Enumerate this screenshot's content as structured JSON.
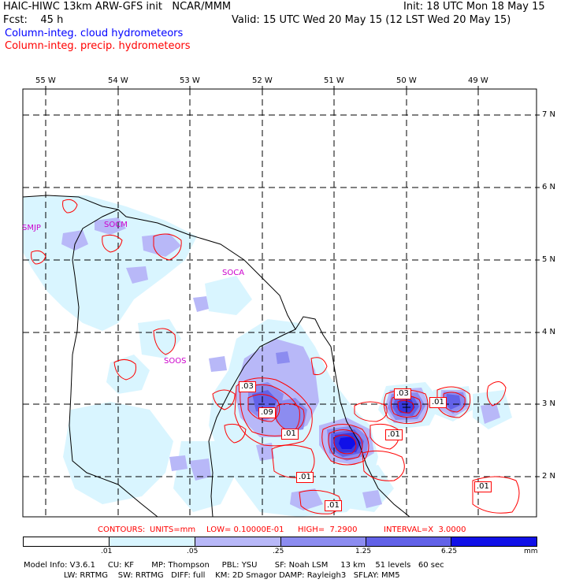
{
  "header": {
    "line1_left": "HAIC-HIWC 13km ARW-GFS init   NCAR/MMM",
    "line1_right": "Init: 18 UTC Mon 18 May 15",
    "line2_left": "Fcst:    45 h",
    "line2_right": "Valid: 15 UTC Wed 20 May 15 (12 LST Wed 20 May 15)",
    "line3": "Column-integ. cloud hydrometeors",
    "line4": "Column-integ. precip. hydrometeors"
  },
  "colors": {
    "cloud": "#0000ff",
    "precip": "#ff0000",
    "station": "#cc00cc",
    "shade1": "#d9f5ff",
    "shade2": "#b8b8f8",
    "shade3": "#8c8cf0",
    "shade4": "#6262e8",
    "shade5": "#3838e0",
    "shade6": "#1010e8"
  },
  "axes": {
    "lon_labels": [
      "55 W",
      "54 W",
      "53 W",
      "52 W",
      "51 W",
      "50 W",
      "49 W"
    ],
    "lat_labels": [
      "7 N",
      "6 N",
      "5 N",
      "4 N",
      "3 N",
      "2 N"
    ]
  },
  "stations": [
    "SMJP",
    "SOCM",
    "SOCA",
    "SOOS"
  ],
  "contour_labels": [
    ".03",
    ".09",
    ".01",
    ".03",
    ".01",
    ".01",
    ".01",
    ".01",
    ".01"
  ],
  "contour_info": {
    "label": "CONTOURS:",
    "units": "UNITS=mm",
    "low": "LOW= 0.10000E-01",
    "high": "HIGH=  7.2900",
    "interval": "INTERVAL=X  3.0000"
  },
  "colorbar": {
    "ticks": [
      ".01",
      ".05",
      ".25",
      "1.25",
      "6.25"
    ],
    "unit": "mm"
  },
  "model_info": {
    "line1": "Model Info: V3.6.1     CU: KF       MP: Thompson     PBL: YSU       SF: Noah LSM     13 km    51 levels   60 sec",
    "line2": "                LW: RRTMG    SW: RRTMG   DIFF: full    KM: 2D Smagor DAMP: Rayleigh3   SFLAY: MM5"
  }
}
